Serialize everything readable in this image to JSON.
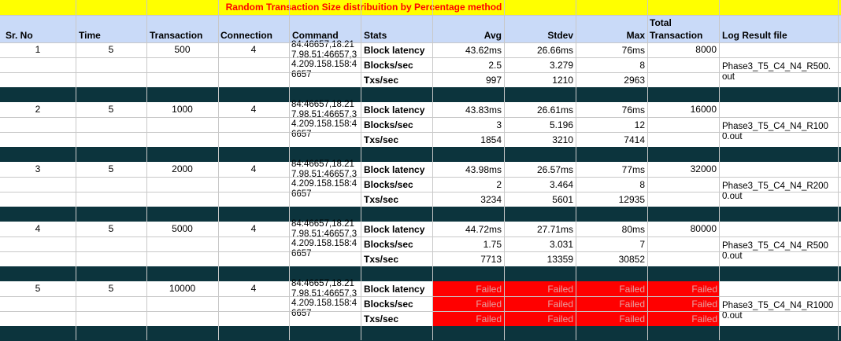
{
  "title": "Random Transaction  Size distribuition by Percentage method",
  "colors": {
    "header_bg": "#c9daf8",
    "title_bg": "#ffff00",
    "title_text": "#ff0000",
    "band": "#0c343d",
    "failed_bg": "#ff0000"
  },
  "headers": {
    "sr_no": "Sr. No",
    "time": "Time",
    "transaction": "Transaction",
    "connection": "Connection",
    "command": "Command",
    "stats": "Stats",
    "avg": "Avg",
    "stdev": "Stdev",
    "max": "Max",
    "total_line1": "Total",
    "total_line2": "Transaction",
    "log": "Log Result file"
  },
  "groups": [
    {
      "sr": "1",
      "time": "5",
      "transaction": "500",
      "connection": "4",
      "command": "84:46657,18.217.98.51:46657,34.209.158.158:46657",
      "total": "8000",
      "log": "Phase3_T5_C4_N4_R500.out",
      "rows": [
        {
          "stat": "Block latency",
          "avg": "43.62ms",
          "stdev": "26.66ms",
          "max": "76ms"
        },
        {
          "stat": "Blocks/sec",
          "avg": "2.5",
          "stdev": "3.279",
          "max": "8"
        },
        {
          "stat": "Txs/sec",
          "avg": "997",
          "stdev": "1210",
          "max": "2963"
        }
      ]
    },
    {
      "sr": "2",
      "time": "5",
      "transaction": "1000",
      "connection": "4",
      "command": "84:46657,18.217.98.51:46657,34.209.158.158:46657",
      "total": "16000",
      "log": "Phase3_T5_C4_N4_R1000.out",
      "rows": [
        {
          "stat": "Block latency",
          "avg": "43.83ms",
          "stdev": "26.61ms",
          "max": "76ms"
        },
        {
          "stat": "Blocks/sec",
          "avg": "3",
          "stdev": "5.196",
          "max": "12"
        },
        {
          "stat": "Txs/sec",
          "avg": "1854",
          "stdev": "3210",
          "max": "7414"
        }
      ]
    },
    {
      "sr": "3",
      "time": "5",
      "transaction": "2000",
      "connection": "4",
      "command": "84:46657,18.217.98.51:46657,34.209.158.158:46657",
      "total": "32000",
      "log": "Phase3_T5_C4_N4_R2000.out",
      "rows": [
        {
          "stat": "Block latency",
          "avg": "43.98ms",
          "stdev": "26.57ms",
          "max": "77ms"
        },
        {
          "stat": "Blocks/sec",
          "avg": "2",
          "stdev": "3.464",
          "max": "8"
        },
        {
          "stat": "Txs/sec",
          "avg": "3234",
          "stdev": "5601",
          "max": "12935"
        }
      ]
    },
    {
      "sr": "4",
      "time": "5",
      "transaction": "5000",
      "connection": "4",
      "command": "84:46657,18.217.98.51:46657,34.209.158.158:46657",
      "total": "80000",
      "log": "Phase3_T5_C4_N4_R5000.out",
      "rows": [
        {
          "stat": "Block latency",
          "avg": "44.72ms",
          "stdev": "27.71ms",
          "max": "80ms"
        },
        {
          "stat": "Blocks/sec",
          "avg": "1.75",
          "stdev": "3.031",
          "max": "7"
        },
        {
          "stat": "Txs/sec",
          "avg": "7713",
          "stdev": "13359",
          "max": "30852"
        }
      ]
    },
    {
      "sr": "5",
      "time": "5",
      "transaction": "10000",
      "connection": "4",
      "command": "84:46657,18.217.98.51:46657,34.209.158.158:46657",
      "total": "",
      "log": "Phase3_T5_C4_N4_R10000.out",
      "rows": [
        {
          "stat": "Block latency",
          "avg": "Failed",
          "stdev": "Failed",
          "max": "Failed",
          "total": "Failed"
        },
        {
          "stat": "Blocks/sec",
          "avg": "Failed",
          "stdev": "Failed",
          "max": "Failed",
          "total": "Failed"
        },
        {
          "stat": "Txs/sec",
          "avg": "Failed",
          "stdev": "Failed",
          "max": "Failed",
          "total": "Failed"
        }
      ]
    }
  ]
}
